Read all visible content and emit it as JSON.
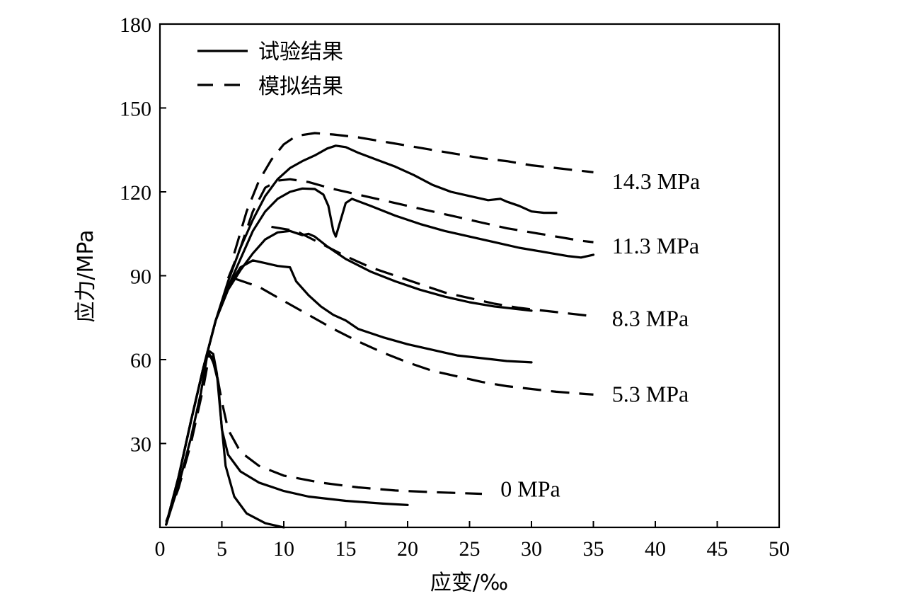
{
  "chart_data": {
    "type": "line",
    "xlabel": "应变/‰",
    "ylabel": "应力/MPa",
    "xlim": [
      0,
      50
    ],
    "ylim": [
      0,
      180
    ],
    "xticks": [
      0,
      5,
      10,
      15,
      20,
      25,
      30,
      35,
      40,
      45,
      50
    ],
    "yticks": [
      30,
      60,
      90,
      120,
      150,
      180
    ],
    "grid": false,
    "legend": {
      "position": "top-left",
      "entries": [
        {
          "label": "试验结果",
          "style": "solid"
        },
        {
          "label": "模拟结果",
          "style": "dashed"
        }
      ]
    },
    "series_labels": [
      {
        "text": "14.3 MPa",
        "x": 36.5,
        "y": 121
      },
      {
        "text": "11.3 MPa",
        "x": 36.5,
        "y": 98
      },
      {
        "text": "8.3 MPa",
        "x": 36.5,
        "y": 72
      },
      {
        "text": "5.3 MPa",
        "x": 36.5,
        "y": 45
      },
      {
        "text": "0 MPa",
        "x": 27.5,
        "y": 11
      }
    ],
    "series": [
      {
        "confinement": "0 MPa",
        "kind": "experimental",
        "points": [
          [
            0.5,
            1
          ],
          [
            1.5,
            15
          ],
          [
            2.5,
            32
          ],
          [
            3.3,
            48
          ],
          [
            3.8,
            61
          ],
          [
            4.0,
            63
          ],
          [
            4.3,
            62
          ],
          [
            4.6,
            55
          ],
          [
            4.9,
            40
          ],
          [
            5.3,
            22
          ],
          [
            6.0,
            11
          ],
          [
            7.0,
            5
          ],
          [
            8.5,
            1.5
          ],
          [
            10.0,
            0
          ]
        ]
      },
      {
        "confinement": "0 MPa",
        "kind": "experimental",
        "points": [
          [
            3.8,
            62
          ],
          [
            4.2,
            61
          ],
          [
            4.7,
            52
          ],
          [
            5.0,
            35
          ],
          [
            5.5,
            26
          ],
          [
            6.5,
            20
          ],
          [
            8.0,
            16
          ],
          [
            10.0,
            13
          ],
          [
            12.0,
            11
          ],
          [
            15.0,
            9.5
          ],
          [
            18.0,
            8.5
          ],
          [
            20.0,
            8
          ]
        ]
      },
      {
        "confinement": "0 MPa",
        "kind": "simulated",
        "points": [
          [
            0.5,
            2
          ],
          [
            1.5,
            14
          ],
          [
            2.5,
            30
          ],
          [
            3.5,
            50
          ],
          [
            4.0,
            62
          ],
          [
            4.5,
            57
          ],
          [
            5.0,
            45
          ],
          [
            5.5,
            35
          ],
          [
            6.5,
            27
          ],
          [
            8.0,
            22
          ],
          [
            10.0,
            18.5
          ],
          [
            13.0,
            16
          ],
          [
            16.0,
            14.3
          ],
          [
            19.0,
            13.2
          ],
          [
            22.0,
            12.6
          ],
          [
            26.0,
            12
          ]
        ]
      },
      {
        "confinement": "5.3 MPa",
        "kind": "experimental",
        "points": [
          [
            0.5,
            1
          ],
          [
            1.5,
            18
          ],
          [
            2.5,
            38
          ],
          [
            3.5,
            57
          ],
          [
            4.5,
            74
          ],
          [
            5.5,
            86
          ],
          [
            6.5,
            93
          ],
          [
            7.5,
            95.5
          ],
          [
            8.5,
            94.5
          ],
          [
            9.5,
            93.5
          ],
          [
            10.5,
            93
          ],
          [
            11.0,
            88
          ],
          [
            12.0,
            83
          ],
          [
            13.0,
            79
          ],
          [
            14.0,
            76
          ],
          [
            15.0,
            74
          ],
          [
            16.0,
            71
          ],
          [
            18.0,
            68
          ],
          [
            20.0,
            65.5
          ],
          [
            22.0,
            63.5
          ],
          [
            24.0,
            61.5
          ],
          [
            26.0,
            60.5
          ],
          [
            28.0,
            59.5
          ],
          [
            30.0,
            59
          ]
        ]
      },
      {
        "confinement": "5.3 MPa",
        "kind": "simulated",
        "points": [
          [
            6.0,
            89
          ],
          [
            8.0,
            86
          ],
          [
            10.0,
            81
          ],
          [
            12.0,
            76
          ],
          [
            14.0,
            71
          ],
          [
            16.0,
            66.5
          ],
          [
            18.0,
            62.5
          ],
          [
            20.0,
            59
          ],
          [
            22.0,
            56
          ],
          [
            24.0,
            54
          ],
          [
            26.0,
            52
          ],
          [
            28.0,
            50.5
          ],
          [
            30.0,
            49.5
          ],
          [
            32.0,
            48.5
          ],
          [
            35.0,
            47.5
          ]
        ]
      },
      {
        "confinement": "8.3 MPa",
        "kind": "experimental",
        "points": [
          [
            0.5,
            1
          ],
          [
            1.5,
            18
          ],
          [
            2.5,
            38
          ],
          [
            3.5,
            57
          ],
          [
            4.5,
            74
          ],
          [
            5.5,
            85
          ],
          [
            6.5,
            92
          ],
          [
            7.5,
            98
          ],
          [
            8.5,
            103
          ],
          [
            9.5,
            105.5
          ],
          [
            10.5,
            106
          ],
          [
            11.5,
            104.5
          ],
          [
            12.0,
            105
          ],
          [
            12.5,
            104
          ],
          [
            13.5,
            100.5
          ],
          [
            15.0,
            96
          ],
          [
            17.0,
            91.5
          ],
          [
            19.0,
            88
          ],
          [
            21.0,
            85
          ],
          [
            23.0,
            82.5
          ],
          [
            25.0,
            80.5
          ],
          [
            27.0,
            79
          ],
          [
            29.0,
            78
          ],
          [
            30.0,
            77.5
          ]
        ]
      },
      {
        "confinement": "8.3 MPa",
        "kind": "simulated",
        "points": [
          [
            9.0,
            107.5
          ],
          [
            11.0,
            106
          ],
          [
            13.0,
            101.5
          ],
          [
            15.0,
            97
          ],
          [
            17.0,
            93
          ],
          [
            19.0,
            90
          ],
          [
            21.0,
            87
          ],
          [
            23.0,
            84
          ],
          [
            25.0,
            82
          ],
          [
            27.0,
            80
          ],
          [
            29.0,
            78.5
          ],
          [
            31.0,
            77.5
          ],
          [
            33.0,
            76.5
          ],
          [
            35.0,
            75.5
          ]
        ]
      },
      {
        "confinement": "11.3 MPa",
        "kind": "experimental",
        "points": [
          [
            0.5,
            1
          ],
          [
            1.5,
            18
          ],
          [
            2.5,
            38
          ],
          [
            3.5,
            57
          ],
          [
            4.5,
            74
          ],
          [
            5.5,
            86
          ],
          [
            6.5,
            96
          ],
          [
            7.5,
            106
          ],
          [
            8.5,
            113
          ],
          [
            9.5,
            117.5
          ],
          [
            10.5,
            120
          ],
          [
            11.5,
            121.2
          ],
          [
            12.5,
            121
          ],
          [
            13.2,
            119
          ],
          [
            13.6,
            115
          ],
          [
            14.0,
            106
          ],
          [
            14.2,
            104
          ],
          [
            14.6,
            110
          ],
          [
            15.0,
            116
          ],
          [
            15.5,
            117.5
          ],
          [
            17.0,
            115
          ],
          [
            19.0,
            111.5
          ],
          [
            21.0,
            108.5
          ],
          [
            23.0,
            106
          ],
          [
            25.0,
            104
          ],
          [
            27.0,
            102
          ],
          [
            29.0,
            100
          ],
          [
            31.0,
            98.5
          ],
          [
            33.0,
            97
          ],
          [
            34.0,
            96.5
          ],
          [
            35.0,
            97.5
          ]
        ]
      },
      {
        "confinement": "11.3 MPa",
        "kind": "simulated",
        "points": [
          [
            5.5,
            89
          ],
          [
            6.5,
            100
          ],
          [
            7.5,
            113
          ],
          [
            8.5,
            121.5
          ],
          [
            9.5,
            124
          ],
          [
            10.5,
            124.5
          ],
          [
            12.0,
            123.5
          ],
          [
            14.0,
            121
          ],
          [
            16.0,
            119
          ],
          [
            18.0,
            117
          ],
          [
            20.0,
            115
          ],
          [
            22.0,
            113
          ],
          [
            24.0,
            111
          ],
          [
            26.0,
            109
          ],
          [
            28.0,
            107
          ],
          [
            30.0,
            105.5
          ],
          [
            32.0,
            104
          ],
          [
            34.0,
            102.5
          ],
          [
            35.0,
            102
          ]
        ]
      },
      {
        "confinement": "14.3 MPa",
        "kind": "experimental",
        "points": [
          [
            0.5,
            1
          ],
          [
            1.5,
            18
          ],
          [
            2.5,
            38
          ],
          [
            3.5,
            57
          ],
          [
            4.5,
            74
          ],
          [
            5.5,
            88
          ],
          [
            6.5,
            100
          ],
          [
            7.5,
            110
          ],
          [
            8.5,
            118.5
          ],
          [
            9.5,
            124.5
          ],
          [
            10.5,
            128.5
          ],
          [
            11.5,
            131
          ],
          [
            12.5,
            133
          ],
          [
            13.5,
            135.5
          ],
          [
            14.2,
            136.5
          ],
          [
            15.0,
            136
          ],
          [
            16.0,
            134
          ],
          [
            17.5,
            131.5
          ],
          [
            19.0,
            129
          ],
          [
            20.5,
            126
          ],
          [
            22.0,
            122.5
          ],
          [
            23.5,
            120
          ],
          [
            25.0,
            118.5
          ],
          [
            26.5,
            117
          ],
          [
            27.5,
            117.5
          ],
          [
            28.0,
            116.5
          ],
          [
            29.0,
            115
          ],
          [
            30.0,
            113
          ],
          [
            31.0,
            112.5
          ],
          [
            32.0,
            112.5
          ]
        ]
      },
      {
        "confinement": "14.3 MPa",
        "kind": "simulated",
        "points": [
          [
            6.0,
            98
          ],
          [
            7.0,
            113
          ],
          [
            8.0,
            124
          ],
          [
            9.0,
            131.5
          ],
          [
            10.0,
            137
          ],
          [
            11.0,
            140
          ],
          [
            12.5,
            141
          ],
          [
            14.0,
            140.5
          ],
          [
            16.0,
            139.5
          ],
          [
            18.0,
            138
          ],
          [
            20.0,
            136.5
          ],
          [
            22.0,
            135
          ],
          [
            24.0,
            133.5
          ],
          [
            26.0,
            132
          ],
          [
            28.0,
            131
          ],
          [
            30.0,
            129.5
          ],
          [
            32.0,
            128.5
          ],
          [
            35.0,
            127
          ]
        ]
      }
    ]
  }
}
